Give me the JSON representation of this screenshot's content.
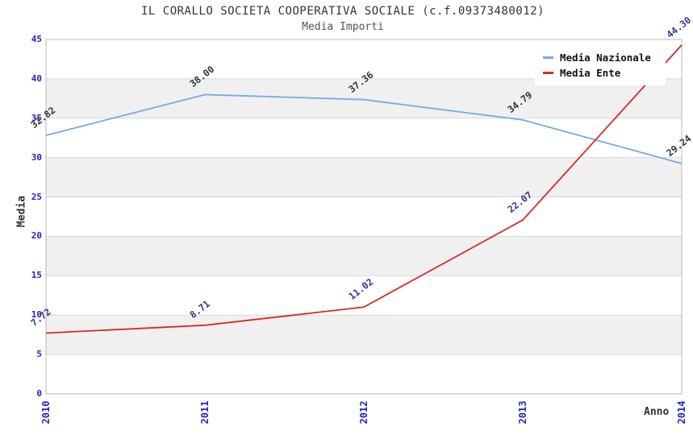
{
  "chart_data": {
    "type": "line",
    "title": "IL CORALLO SOCIETA COOPERATIVA SOCIALE (c.f.09373480012)",
    "subtitle": "Media Importi",
    "xlabel": "Anno",
    "ylabel": "Media",
    "categories": [
      "2010",
      "2011",
      "2012",
      "2013",
      "2014"
    ],
    "ylim": [
      0,
      45
    ],
    "ytick_step": 5,
    "grid": "horizontal gridlines with alternating shaded bands",
    "legend_position": "top-right",
    "series": [
      {
        "name": "Media Nazionale",
        "color": "#74abe2",
        "label_color": "#333333",
        "values": [
          32.82,
          38.0,
          37.36,
          34.79,
          29.24
        ],
        "value_labels": [
          "32.82",
          "38.00",
          "37.36",
          "34.79",
          "29.24"
        ]
      },
      {
        "name": "Media Ente",
        "color": "#dd2727",
        "label_color": "#333399",
        "values": [
          7.72,
          8.71,
          11.02,
          22.07,
          44.3
        ],
        "value_labels": [
          "7.72",
          "8.71",
          "11.02",
          "22.07",
          "44.30"
        ]
      }
    ]
  },
  "colors": {
    "axis_tick_text": "#2222cc",
    "title_text": "#333333",
    "subtitle_text": "#555555",
    "axis_label_text": "#333333",
    "legend_text": "#111111",
    "band_fill": "#f0f0f0",
    "gridline": "#d9d9d9",
    "plot_border": "#b8b8b8",
    "background": "#ffffff"
  }
}
